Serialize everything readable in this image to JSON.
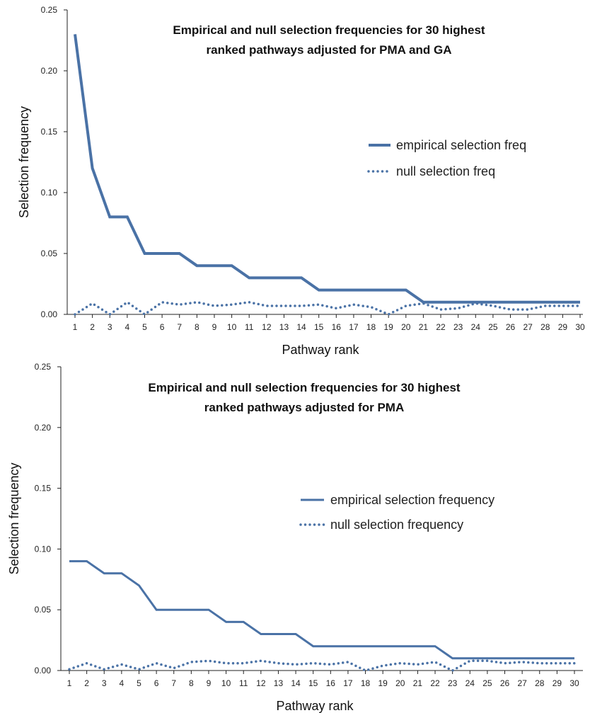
{
  "chart_data": [
    {
      "type": "line",
      "title": "Empirical and null selection frequencies for 30 highest ranked pathways adjusted for PMA and GA",
      "title_lines": [
        "Empirical and null selection frequencies for 30 highest",
        "ranked pathways adjusted for PMA and GA"
      ],
      "xlabel": "Pathway rank",
      "ylabel": "Selection frequency",
      "x": [
        1,
        2,
        3,
        4,
        5,
        6,
        7,
        8,
        9,
        10,
        11,
        12,
        13,
        14,
        15,
        16,
        17,
        18,
        19,
        20,
        21,
        22,
        23,
        24,
        25,
        26,
        27,
        28,
        29,
        30
      ],
      "x_tick_labels": [
        "1",
        "2",
        "3",
        "4",
        "5",
        "6",
        "7",
        "8",
        "9",
        "10",
        "11",
        "12",
        "13",
        "14",
        "15",
        "16",
        "17",
        "18",
        "19",
        "20",
        "21",
        "22",
        "23",
        "24",
        "25",
        "26",
        "27",
        "28",
        "29",
        "30"
      ],
      "y_tick_labels": [
        "0.00",
        "0.05",
        "0.10",
        "0.15",
        "0.20",
        "0.25"
      ],
      "y_ticks": [
        0,
        0.05,
        0.1,
        0.15,
        0.2,
        0.25
      ],
      "ylim": [
        0,
        0.25
      ],
      "legend_position": "right",
      "series": [
        {
          "name": "empirical selection freq",
          "style": "solid",
          "color": "#4a72a6",
          "values": [
            0.23,
            0.12,
            0.08,
            0.08,
            0.05,
            0.05,
            0.05,
            0.04,
            0.04,
            0.04,
            0.03,
            0.03,
            0.03,
            0.03,
            0.02,
            0.02,
            0.02,
            0.02,
            0.02,
            0.02,
            0.01,
            0.01,
            0.01,
            0.01,
            0.01,
            0.01,
            0.01,
            0.01,
            0.01,
            0.01
          ]
        },
        {
          "name": "null selection freq",
          "style": "dotted",
          "color": "#4a72a6",
          "values": [
            0.0,
            0.009,
            0.0,
            0.01,
            0.0,
            0.01,
            0.008,
            0.01,
            0.007,
            0.008,
            0.01,
            0.007,
            0.007,
            0.007,
            0.008,
            0.005,
            0.008,
            0.006,
            0.0,
            0.007,
            0.009,
            0.004,
            0.005,
            0.009,
            0.007,
            0.004,
            0.004,
            0.007,
            0.007,
            0.007
          ]
        }
      ]
    },
    {
      "type": "line",
      "title": "Empirical and null selection frequencies for 30 highest ranked pathways adjusted for PMA",
      "title_lines": [
        "Empirical and null selection frequencies for 30 highest",
        "ranked pathways adjusted for PMA"
      ],
      "xlabel": "Pathway rank",
      "ylabel": "Selection frequency",
      "x": [
        1,
        2,
        3,
        4,
        5,
        6,
        7,
        8,
        9,
        10,
        11,
        12,
        13,
        14,
        15,
        16,
        17,
        18,
        19,
        20,
        21,
        22,
        23,
        24,
        25,
        26,
        27,
        28,
        29,
        30
      ],
      "x_tick_labels": [
        "1",
        "2",
        "3",
        "4",
        "5",
        "6",
        "7",
        "8",
        "9",
        "10",
        "11",
        "12",
        "13",
        "14",
        "15",
        "16",
        "17",
        "18",
        "19",
        "20",
        "21",
        "22",
        "23",
        "24",
        "25",
        "26",
        "27",
        "28",
        "29",
        "30"
      ],
      "y_tick_labels": [
        "0.00",
        "0.05",
        "0.10",
        "0.15",
        "0.20",
        "0.25"
      ],
      "y_ticks": [
        0,
        0.05,
        0.1,
        0.15,
        0.2,
        0.25
      ],
      "ylim": [
        0,
        0.25
      ],
      "legend_position": "right",
      "series": [
        {
          "name": "empirical selection frequency",
          "style": "solid",
          "color": "#4a72a6",
          "values": [
            0.09,
            0.09,
            0.08,
            0.08,
            0.07,
            0.05,
            0.05,
            0.05,
            0.05,
            0.04,
            0.04,
            0.03,
            0.03,
            0.03,
            0.02,
            0.02,
            0.02,
            0.02,
            0.02,
            0.02,
            0.02,
            0.02,
            0.01,
            0.01,
            0.01,
            0.01,
            0.01,
            0.01,
            0.01,
            0.01
          ]
        },
        {
          "name": "null selection frequency",
          "style": "dotted",
          "color": "#4a72a6",
          "values": [
            0.001,
            0.006,
            0.001,
            0.005,
            0.001,
            0.006,
            0.002,
            0.007,
            0.008,
            0.006,
            0.006,
            0.008,
            0.006,
            0.005,
            0.006,
            0.005,
            0.007,
            0.0,
            0.004,
            0.006,
            0.005,
            0.007,
            0.0,
            0.008,
            0.008,
            0.006,
            0.007,
            0.006,
            0.006,
            0.006
          ]
        }
      ]
    }
  ]
}
